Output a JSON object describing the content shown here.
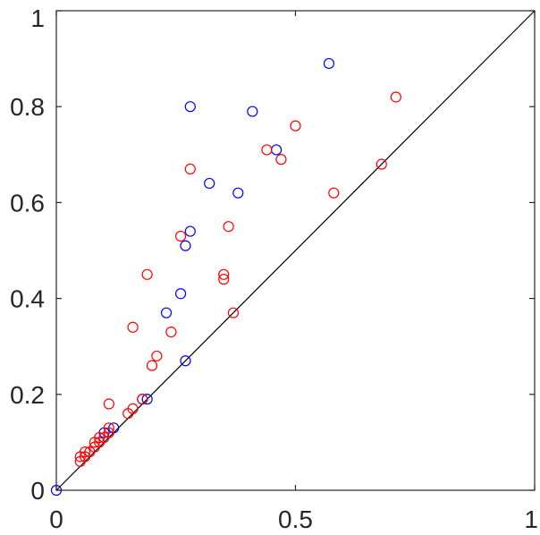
{
  "chart_data": {
    "type": "scatter",
    "title": "",
    "xlabel": "",
    "ylabel": "",
    "xlim": [
      0,
      1
    ],
    "ylim": [
      0,
      1
    ],
    "grid": false,
    "x_ticks": [
      0,
      0.5,
      1
    ],
    "x_tick_labels": [
      "0",
      "0.5",
      "1"
    ],
    "y_ticks": [
      0,
      0.2,
      0.4,
      0.6,
      0.8,
      1
    ],
    "y_tick_labels": [
      "0",
      "0.2",
      "0.4",
      "0.6",
      "0.8",
      "1"
    ],
    "reference_line": {
      "from": [
        0,
        0
      ],
      "to": [
        1,
        1
      ],
      "color": "#000000"
    },
    "series": [
      {
        "color": "#0000ff",
        "marker": "open-circle",
        "points": [
          [
            0.0,
            0.0
          ],
          [
            0.1,
            0.12
          ],
          [
            0.12,
            0.13
          ],
          [
            0.18,
            0.19
          ],
          [
            0.19,
            0.19
          ],
          [
            0.27,
            0.27
          ],
          [
            0.23,
            0.37
          ],
          [
            0.26,
            0.41
          ],
          [
            0.27,
            0.51
          ],
          [
            0.28,
            0.54
          ],
          [
            0.32,
            0.64
          ],
          [
            0.38,
            0.62
          ],
          [
            0.46,
            0.71
          ],
          [
            0.41,
            0.79
          ],
          [
            0.28,
            0.8
          ],
          [
            0.57,
            0.89
          ]
        ]
      },
      {
        "color": "#ff0000",
        "marker": "open-circle",
        "points": [
          [
            0.05,
            0.06
          ],
          [
            0.05,
            0.07
          ],
          [
            0.06,
            0.07
          ],
          [
            0.06,
            0.08
          ],
          [
            0.07,
            0.08
          ],
          [
            0.08,
            0.09
          ],
          [
            0.08,
            0.1
          ],
          [
            0.09,
            0.1
          ],
          [
            0.09,
            0.11
          ],
          [
            0.1,
            0.11
          ],
          [
            0.11,
            0.12
          ],
          [
            0.11,
            0.13
          ],
          [
            0.11,
            0.18
          ],
          [
            0.15,
            0.16
          ],
          [
            0.16,
            0.17
          ],
          [
            0.18,
            0.19
          ],
          [
            0.16,
            0.34
          ],
          [
            0.2,
            0.26
          ],
          [
            0.21,
            0.28
          ],
          [
            0.24,
            0.33
          ],
          [
            0.19,
            0.45
          ],
          [
            0.26,
            0.53
          ],
          [
            0.28,
            0.67
          ],
          [
            0.35,
            0.44
          ],
          [
            0.35,
            0.45
          ],
          [
            0.36,
            0.55
          ],
          [
            0.37,
            0.37
          ],
          [
            0.44,
            0.71
          ],
          [
            0.47,
            0.69
          ],
          [
            0.5,
            0.76
          ],
          [
            0.58,
            0.62
          ],
          [
            0.68,
            0.68
          ],
          [
            0.71,
            0.82
          ]
        ]
      }
    ]
  }
}
